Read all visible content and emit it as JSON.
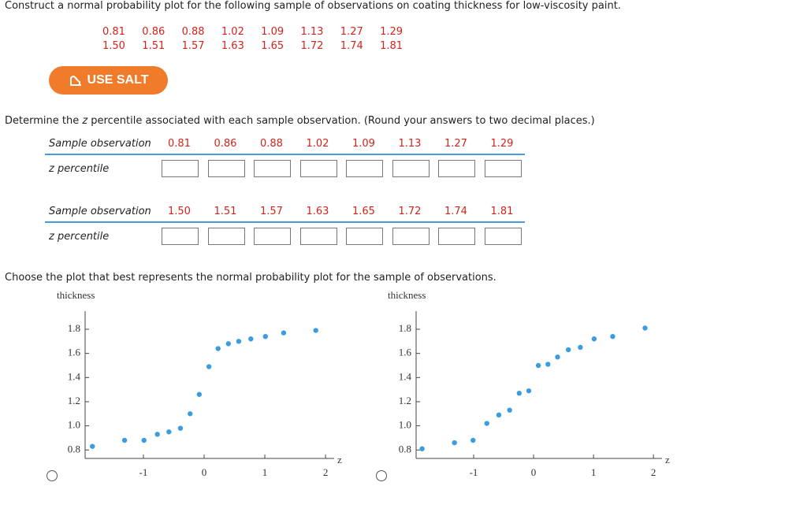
{
  "question": "Construct a normal probability plot for the following sample of observations on coating thickness for low-viscosity paint.",
  "sample_rows": [
    [
      "0.81",
      "0.86",
      "0.88",
      "1.02",
      "1.09",
      "1.13",
      "1.27",
      "1.29"
    ],
    [
      "1.50",
      "1.51",
      "1.57",
      "1.63",
      "1.65",
      "1.72",
      "1.74",
      "1.81"
    ]
  ],
  "salt_button": "USE SALT",
  "instruction": {
    "before": "Determine the ",
    "variable": "z",
    "after": " percentile associated with each sample observation. (Round your answers to two decimal places.)"
  },
  "tables": [
    {
      "row_header": "Sample observation",
      "answer_header": "z percentile",
      "observations": [
        "0.81",
        "0.86",
        "0.88",
        "1.02",
        "1.09",
        "1.13",
        "1.27",
        "1.29"
      ]
    },
    {
      "row_header": "Sample observation",
      "answer_header": "z percentile",
      "observations": [
        "1.50",
        "1.51",
        "1.57",
        "1.63",
        "1.65",
        "1.72",
        "1.74",
        "1.81"
      ]
    }
  ],
  "plot_prompt": "Choose the plot that best represents the normal probability plot for the sample of observations.",
  "charts": [
    {
      "type": "scatter",
      "ylabel": "thickness",
      "xlabel": "z",
      "color": "#3b9de0",
      "x": [
        -1.84,
        -1.31,
        -0.99,
        -0.77,
        -0.58,
        -0.39,
        -0.23,
        -0.08,
        0.08,
        0.23,
        0.4,
        0.57,
        0.77,
        1.01,
        1.31,
        1.84
      ],
      "y": [
        0.83,
        0.88,
        0.88,
        0.93,
        0.95,
        0.98,
        1.1,
        1.26,
        1.49,
        1.64,
        1.68,
        1.7,
        1.72,
        1.74,
        1.77,
        1.79
      ],
      "xlim": [
        -1.96,
        2.09
      ],
      "ylim": [
        0.73,
        1.95
      ],
      "xticks": [
        -1,
        0,
        1,
        2
      ],
      "yticks": [
        0.8,
        {
          "value": 1,
          "label": "1.0"
        },
        1.2,
        1.4,
        1.6,
        1.8
      ]
    },
    {
      "type": "scatter",
      "ylabel": "thickness",
      "xlabel": "z",
      "color": "#3b9de0",
      "x": [
        -1.86,
        -1.32,
        -1.01,
        -0.78,
        -0.58,
        -0.4,
        -0.24,
        -0.08,
        0.08,
        0.24,
        0.4,
        0.58,
        0.78,
        1.01,
        1.32,
        1.86
      ],
      "y": [
        0.81,
        0.86,
        0.88,
        1.02,
        1.09,
        1.13,
        1.27,
        1.29,
        1.5,
        1.51,
        1.57,
        1.63,
        1.65,
        1.72,
        1.74,
        1.81
      ],
      "xlim": [
        -1.96,
        2.09
      ],
      "ylim": [
        0.73,
        1.95
      ],
      "xticks": [
        -1,
        0,
        1,
        2
      ],
      "yticks": [
        0.8,
        {
          "value": 1,
          "label": "1.0"
        },
        1.2,
        1.4,
        1.6,
        1.8
      ]
    }
  ]
}
